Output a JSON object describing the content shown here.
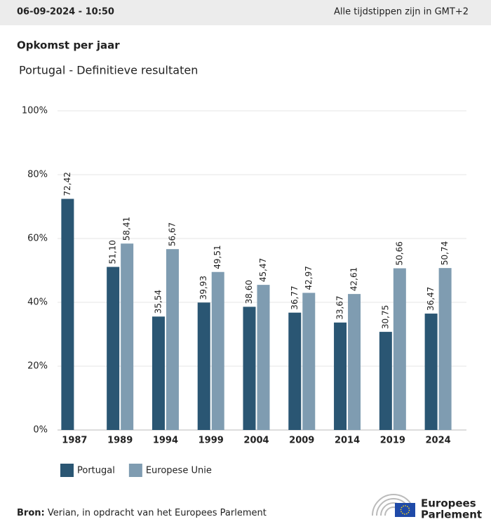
{
  "header": {
    "date": "06-09-2024 - 10:50",
    "timezone": "Alle tijdstippen zijn in GMT+2"
  },
  "chart_data": {
    "type": "bar",
    "title": "Opkomst per jaar",
    "subtitle": "Portugal - Definitieve resultaten",
    "categories": [
      "1987",
      "1989",
      "1994",
      "1999",
      "2004",
      "2009",
      "2014",
      "2019",
      "2024"
    ],
    "series": [
      {
        "name": "Portugal",
        "color": "#2a5673",
        "values": [
          72.42,
          51.1,
          35.54,
          39.93,
          38.6,
          36.77,
          33.67,
          30.75,
          36.47
        ],
        "value_labels": [
          "72,42",
          "51,10",
          "35,54",
          "39,93",
          "38,60",
          "36,77",
          "33,67",
          "30,75",
          "36,47"
        ]
      },
      {
        "name": "Europese Unie",
        "color": "#7f9cb1",
        "values": [
          null,
          58.41,
          56.67,
          49.51,
          45.47,
          42.97,
          42.61,
          50.66,
          50.74
        ],
        "value_labels": [
          null,
          "58,41",
          "56,67",
          "49,51",
          "45,47",
          "42,97",
          "42,61",
          "50,66",
          "50,74"
        ]
      }
    ],
    "ylim": [
      0,
      100
    ],
    "yticks": [
      {
        "value": 0,
        "label": "0%"
      },
      {
        "value": 20,
        "label": "20%"
      },
      {
        "value": 40,
        "label": "40%"
      },
      {
        "value": 60,
        "label": "60%"
      },
      {
        "value": 80,
        "label": "80%"
      },
      {
        "value": 100,
        "label": "100%"
      }
    ],
    "grid": true,
    "legend": "bottom-left"
  },
  "source": {
    "label": "Bron:",
    "text": "Verian, in opdracht van het Europees Parlement"
  },
  "logo": {
    "line1": "Europees",
    "line2": "Parlement"
  }
}
